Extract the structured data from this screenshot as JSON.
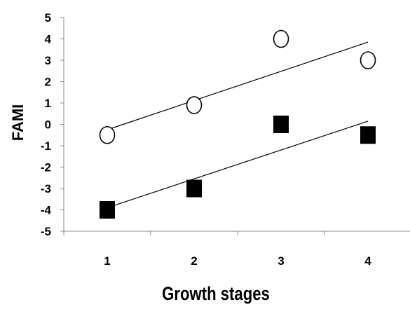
{
  "chart_data": {
    "type": "scatter",
    "title": "",
    "xlabel": "Growth stages",
    "ylabel": "FAMI",
    "x": [
      1,
      2,
      3,
      4
    ],
    "xlim": [
      0.5,
      4.5
    ],
    "ylim": [
      -5,
      5
    ],
    "x_ticks": [
      "1",
      "2",
      "3",
      "4"
    ],
    "y_ticks": [
      "5",
      "4",
      "3",
      "2",
      "1",
      "0",
      "-1",
      "-2",
      "-3",
      "-4",
      "-5"
    ],
    "grid": false,
    "legend": "none",
    "series": [
      {
        "marker": "open-circle",
        "values": [
          -0.5,
          0.9,
          4.0,
          3.0
        ],
        "trendline": {
          "start": [
            1,
            -0.25
          ],
          "end": [
            4,
            3.85
          ]
        }
      },
      {
        "marker": "filled-square",
        "values": [
          -4.0,
          -3.0,
          0.0,
          -0.5
        ],
        "trendline": {
          "start": [
            1,
            -3.9
          ],
          "end": [
            4,
            0.15
          ]
        }
      }
    ]
  },
  "colors": {
    "marker_fill_square": "#000000",
    "marker_fill_circle": "#ffffff",
    "line": "#000000"
  }
}
